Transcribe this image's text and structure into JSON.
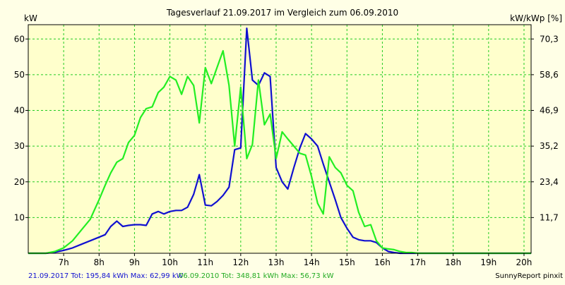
{
  "chart_data": {
    "type": "line",
    "title": "Tagesverlauf 21.09.2017 im Vergleich zum 06.09.2010",
    "ylabel_left": "kW",
    "ylabel_right": "kW/kWp [%]",
    "x_ticks": [
      "7h",
      "8h",
      "9h",
      "10h",
      "11h",
      "12h",
      "13h",
      "14h",
      "15h",
      "16h",
      "17h",
      "18h",
      "19h",
      "20h"
    ],
    "y_ticks_left": [
      "10",
      "20",
      "30",
      "40",
      "50",
      "60"
    ],
    "y_ticks_right": [
      "11,7",
      "23,4",
      "35,2",
      "46,9",
      "58,6",
      "70,3"
    ],
    "xlim": [
      6,
      20.2
    ],
    "ylim": [
      0,
      64
    ],
    "grid": true,
    "colors": {
      "background": "#ffffe6",
      "plot_background": "#ffffcc",
      "grid": "#22cc22",
      "axis": "#000000"
    },
    "series": [
      {
        "name": "21.09.2017",
        "color": "#1010d0",
        "x": [
          6.0,
          6.5,
          6.75,
          7.0,
          7.25,
          7.5,
          7.75,
          8.0,
          8.17,
          8.33,
          8.5,
          8.67,
          8.83,
          9.0,
          9.17,
          9.33,
          9.5,
          9.67,
          9.83,
          10.0,
          10.17,
          10.33,
          10.5,
          10.67,
          10.83,
          11.0,
          11.17,
          11.33,
          11.5,
          11.67,
          11.83,
          12.0,
          12.17,
          12.33,
          12.5,
          12.67,
          12.83,
          13.0,
          13.17,
          13.33,
          13.5,
          13.67,
          13.83,
          14.0,
          14.17,
          14.33,
          14.5,
          14.67,
          14.83,
          15.0,
          15.17,
          15.33,
          15.5,
          15.67,
          15.83,
          16.0,
          16.17,
          16.33,
          16.5,
          16.67,
          16.83,
          17.0,
          17.17,
          17.33,
          17.5,
          17.67,
          17.83,
          18.0,
          18.17,
          18.33,
          18.5,
          18.67,
          19.0,
          19.5,
          20.0,
          20.2
        ],
        "y": [
          0,
          0,
          0.3,
          0.8,
          1.5,
          2.5,
          3.5,
          4.5,
          5.2,
          7.5,
          9.0,
          7.5,
          7.8,
          8.0,
          8.0,
          7.8,
          11.0,
          11.7,
          11.0,
          11.7,
          12.0,
          12.0,
          12.9,
          16.5,
          22.0,
          13.5,
          13.3,
          14.5,
          16.2,
          18.5,
          29.0,
          29.5,
          63.0,
          48.5,
          47.0,
          50.5,
          49.5,
          24.0,
          20.0,
          18.0,
          24.0,
          29.5,
          33.5,
          32.0,
          30.0,
          25.0,
          20.0,
          15.0,
          10.0,
          7.0,
          4.5,
          3.8,
          3.5,
          3.5,
          3.0,
          1.5,
          0.5,
          0.2,
          0,
          0,
          0,
          0,
          0,
          0,
          0,
          0,
          0,
          0,
          0,
          0,
          0,
          0,
          0,
          0,
          0,
          0
        ]
      },
      {
        "name": "06.09.2010",
        "color": "#22ee22",
        "x": [
          6.0,
          6.5,
          6.75,
          7.0,
          7.25,
          7.5,
          7.75,
          8.0,
          8.17,
          8.33,
          8.5,
          8.67,
          8.83,
          9.0,
          9.17,
          9.33,
          9.5,
          9.67,
          9.83,
          10.0,
          10.17,
          10.33,
          10.5,
          10.67,
          10.83,
          11.0,
          11.17,
          11.33,
          11.5,
          11.67,
          11.83,
          12.0,
          12.17,
          12.33,
          12.5,
          12.67,
          12.83,
          13.0,
          13.17,
          13.33,
          13.5,
          13.67,
          13.83,
          14.0,
          14.17,
          14.33,
          14.5,
          14.67,
          14.83,
          15.0,
          15.17,
          15.33,
          15.5,
          15.67,
          15.83,
          16.0,
          16.17,
          16.33,
          16.5,
          16.67,
          16.83,
          17.0,
          17.17,
          17.33,
          17.5,
          17.67,
          17.83,
          18.0,
          18.17,
          18.33,
          18.5,
          18.67,
          19.0,
          19.5,
          20.0,
          20.2
        ],
        "y": [
          0,
          0,
          0.5,
          1.5,
          3.5,
          6.5,
          9.5,
          15.0,
          19.0,
          22.5,
          25.5,
          26.5,
          31.0,
          33.0,
          38.0,
          40.5,
          41.0,
          45.0,
          46.5,
          49.5,
          48.5,
          44.5,
          49.5,
          47.0,
          36.5,
          52.0,
          47.5,
          52.0,
          56.7,
          47.0,
          30.0,
          46.5,
          26.5,
          30.5,
          48.5,
          36.0,
          39.0,
          26.5,
          34.0,
          32.0,
          30.0,
          28.0,
          27.5,
          21.5,
          14.0,
          11.0,
          27.0,
          24.0,
          22.5,
          19.0,
          17.5,
          11.5,
          7.5,
          8.0,
          3.5,
          1.5,
          1.2,
          1.0,
          0.5,
          0.2,
          0.2,
          0,
          0,
          0,
          0,
          0,
          0,
          0,
          0,
          0,
          0,
          0,
          0,
          0,
          0,
          0
        ]
      }
    ]
  },
  "footer": {
    "left_text": "21.09.2017 Tot: 195,84 kWh Max: 62,99 kW",
    "mid_text": "06.09.2010 Tot: 348,81 kWh Max: 56,73 kW",
    "right_text": "SunnyReport pinxit"
  }
}
